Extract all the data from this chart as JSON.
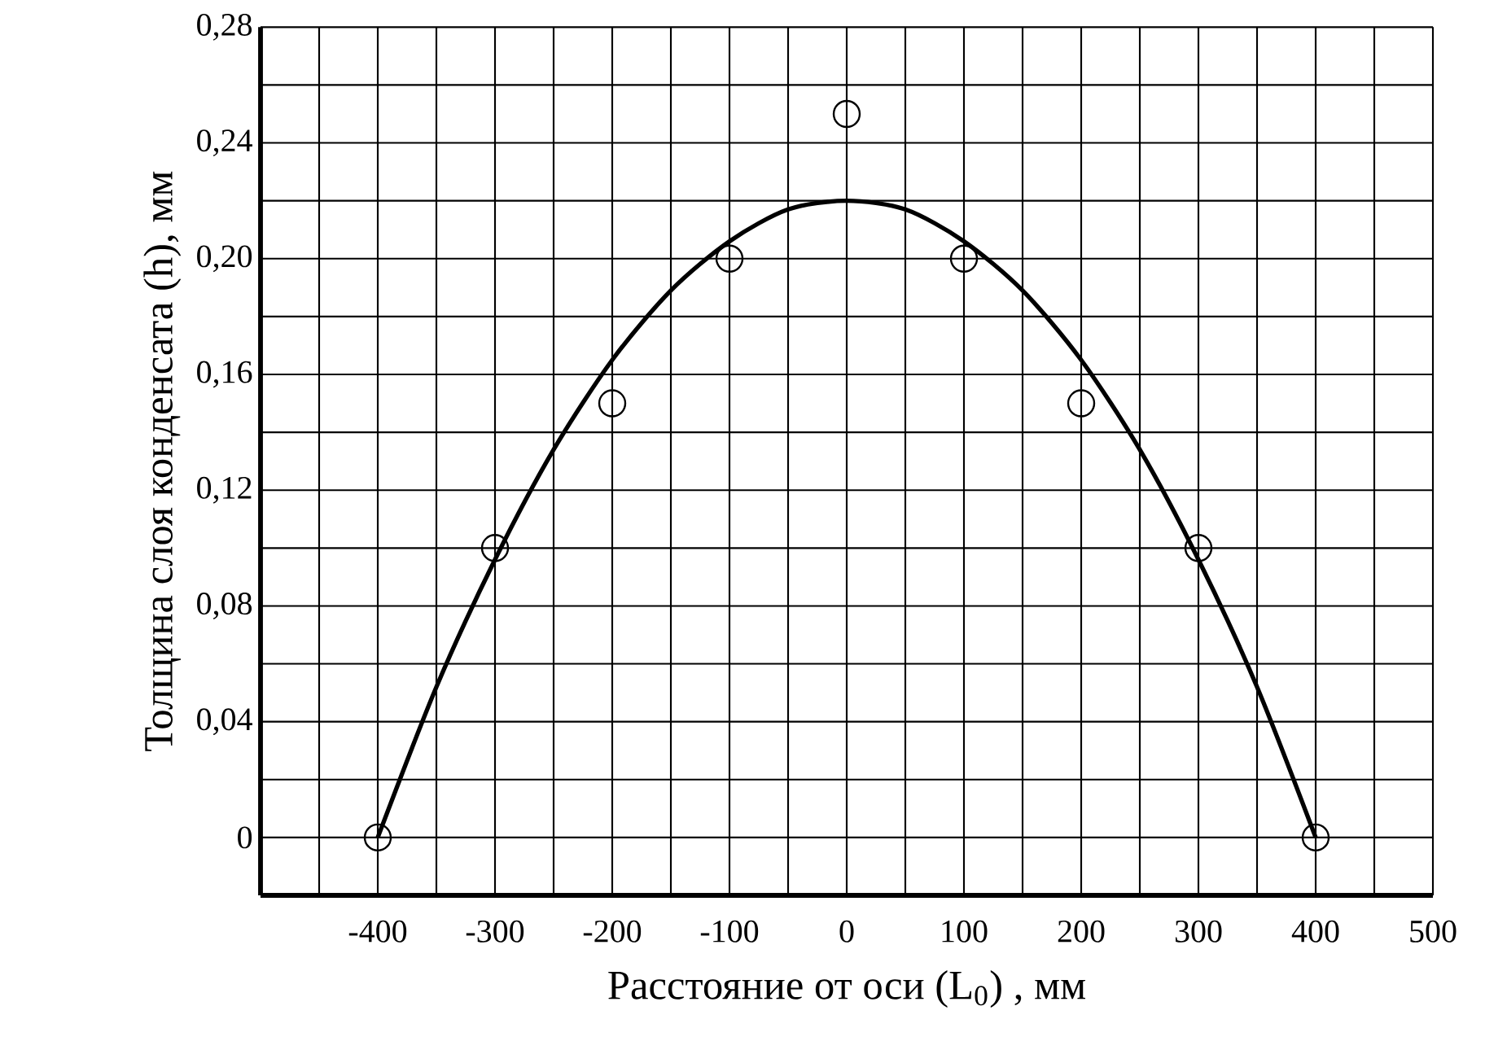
{
  "chart_data": {
    "type": "scatter",
    "xlabel": "Расстояние от оси (L$_{0}$) , мм",
    "ylabel": "Толщина слоя конденсата (h), мм",
    "series": [
      {
        "color": "#000000",
        "marker": "circle",
        "x": [
          -400,
          -300,
          -200,
          -100,
          0,
          100,
          200,
          300,
          400
        ],
        "values": [
          0,
          0.1,
          0.15,
          0.2,
          0.25,
          0.2,
          0.15,
          0.1,
          0
        ]
      },
      {
        "type": "line",
        "color": "#000000",
        "marker": "none",
        "line_style": "solid",
        "x": [
          -400,
          -350,
          -300,
          -250,
          -200,
          -150,
          -100,
          -50,
          0,
          50,
          100,
          150,
          200,
          250,
          300,
          350,
          400
        ],
        "values": [
          0,
          0.052,
          0.096,
          0.134,
          0.165,
          0.189,
          0.206,
          0.217,
          0.22,
          0.217,
          0.206,
          0.189,
          0.165,
          0.134,
          0.096,
          0.052,
          0
        ]
      }
    ],
    "xlim": [
      -500,
      500
    ],
    "ylim": [
      -0.02,
      0.28
    ],
    "xticks": [
      {
        "value": -450,
        "label": null
      },
      -400,
      {
        "value": -350,
        "label": null
      },
      -300,
      {
        "value": -250,
        "label": null
      },
      -200,
      {
        "value": -150,
        "label": null
      },
      -100,
      {
        "value": -50,
        "label": null
      },
      0,
      {
        "value": 50,
        "label": null
      },
      100,
      {
        "value": 150,
        "label": null
      },
      200,
      {
        "value": 250,
        "label": null
      },
      300,
      {
        "value": 350,
        "label": null
      },
      400,
      {
        "value": 450,
        "label": null
      },
      500
    ],
    "yticks": [
      0,
      {
        "value": 0.02,
        "label": null
      },
      {
        "value": 0.04,
        "label": "0,04"
      },
      {
        "value": 0.06,
        "label": null
      },
      {
        "value": 0.08,
        "label": "0,08"
      },
      {
        "value": 0.1,
        "label": null
      },
      {
        "value": 0.12,
        "label": "0,12"
      },
      {
        "value": 0.14,
        "label": null
      },
      {
        "value": 0.16,
        "label": "0,16"
      },
      {
        "value": 0.18,
        "label": null
      },
      {
        "value": 0.2,
        "label": "0,20"
      },
      {
        "value": 0.22,
        "label": null
      },
      {
        "value": 0.24,
        "label": "0,24"
      },
      {
        "value": 0.26,
        "label": null
      },
      {
        "value": 0.28,
        "label": "0,28"
      }
    ],
    "grid": true
  }
}
